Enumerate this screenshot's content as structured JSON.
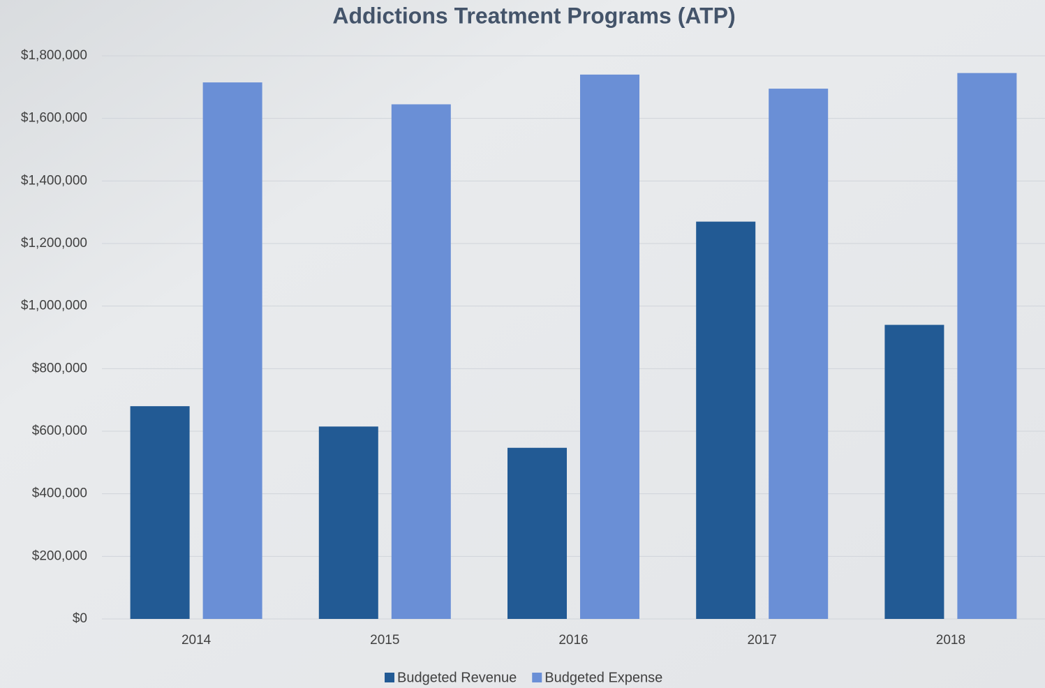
{
  "chart_data": {
    "type": "bar",
    "title": "Addictions Treatment Programs (ATP)",
    "categories": [
      "2014",
      "2015",
      "2016",
      "2017",
      "2018"
    ],
    "series": [
      {
        "name": "Budgeted Revenue",
        "color": "#225a94",
        "values": [
          680000,
          615000,
          547000,
          1270000,
          940000
        ]
      },
      {
        "name": "Budgeted Expense",
        "color": "#6a8fd6",
        "values": [
          1715000,
          1645000,
          1740000,
          1695000,
          1745000
        ]
      }
    ],
    "ylim": [
      0,
      1800000
    ],
    "yticks": [
      {
        "value": 0,
        "label": "$0"
      },
      {
        "value": 200000,
        "label": "$200,000"
      },
      {
        "value": 400000,
        "label": "$400,000"
      },
      {
        "value": 600000,
        "label": "$600,000"
      },
      {
        "value": 800000,
        "label": "$800,000"
      },
      {
        "value": 1000000,
        "label": "$1,000,000"
      },
      {
        "value": 1200000,
        "label": "$1,200,000"
      },
      {
        "value": 1400000,
        "label": "$1,400,000"
      },
      {
        "value": 1600000,
        "label": "$1,600,000"
      },
      {
        "value": 1800000,
        "label": "$1,800,000"
      }
    ],
    "grid": true,
    "legend": "bottom"
  }
}
